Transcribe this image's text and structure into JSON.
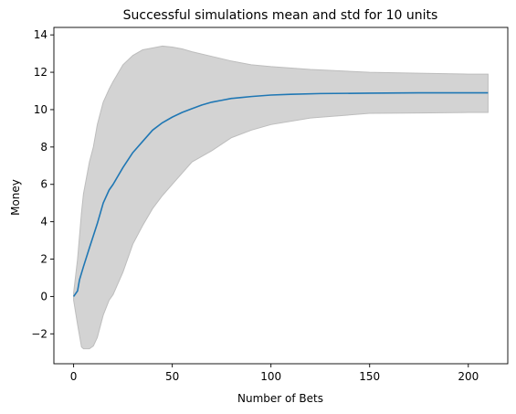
{
  "chart_data": {
    "type": "line",
    "title": "Successful simulations mean and std for 10 units",
    "xlabel": "Number of Bets",
    "ylabel": "Money",
    "xlim": [
      -10,
      220
    ],
    "ylim": [
      -3.6,
      14.4
    ],
    "xticks": [
      0,
      50,
      100,
      150,
      200
    ],
    "yticks": [
      -2,
      0,
      2,
      4,
      6,
      8,
      10,
      12,
      14
    ],
    "grid": false,
    "legend": "none",
    "colors": {
      "mean_line": "#1f77b4",
      "std_band": "#d3d3d3",
      "std_band_edge": "#bdbdbd"
    },
    "series": [
      {
        "role": "mean",
        "x": [
          0,
          2,
          3,
          5,
          8,
          12,
          15,
          18,
          20,
          25,
          30,
          35,
          40,
          45,
          50,
          55,
          60,
          65,
          70,
          75,
          80,
          85,
          90,
          100,
          110,
          125,
          150,
          175,
          200,
          210
        ],
        "y": [
          0.0,
          0.3,
          0.9,
          1.6,
          2.6,
          3.9,
          5.0,
          5.7,
          6.0,
          6.9,
          7.7,
          8.3,
          8.9,
          9.3,
          9.6,
          9.85,
          10.05,
          10.25,
          10.4,
          10.5,
          10.6,
          10.65,
          10.7,
          10.78,
          10.82,
          10.86,
          10.88,
          10.9,
          10.9,
          10.9
        ]
      },
      {
        "role": "std_band",
        "x": [
          0,
          2,
          4,
          5,
          8,
          10,
          12,
          15,
          18,
          20,
          25,
          30,
          35,
          40,
          45,
          50,
          55,
          60,
          70,
          80,
          90,
          100,
          120,
          150,
          175,
          200,
          210
        ],
        "upper": [
          0.2,
          2.0,
          4.5,
          5.5,
          7.2,
          8.0,
          9.2,
          10.4,
          11.1,
          11.5,
          12.4,
          12.9,
          13.2,
          13.3,
          13.4,
          13.35,
          13.25,
          13.1,
          12.85,
          12.6,
          12.4,
          12.3,
          12.15,
          12.0,
          11.95,
          11.9,
          11.9
        ],
        "lower": [
          -0.2,
          -1.5,
          -2.7,
          -2.8,
          -2.8,
          -2.65,
          -2.2,
          -1.0,
          -0.2,
          0.1,
          1.3,
          2.8,
          3.8,
          4.7,
          5.4,
          6.0,
          6.6,
          7.2,
          7.8,
          8.5,
          8.9,
          9.2,
          9.55,
          9.8,
          9.82,
          9.85,
          9.85
        ]
      }
    ]
  }
}
